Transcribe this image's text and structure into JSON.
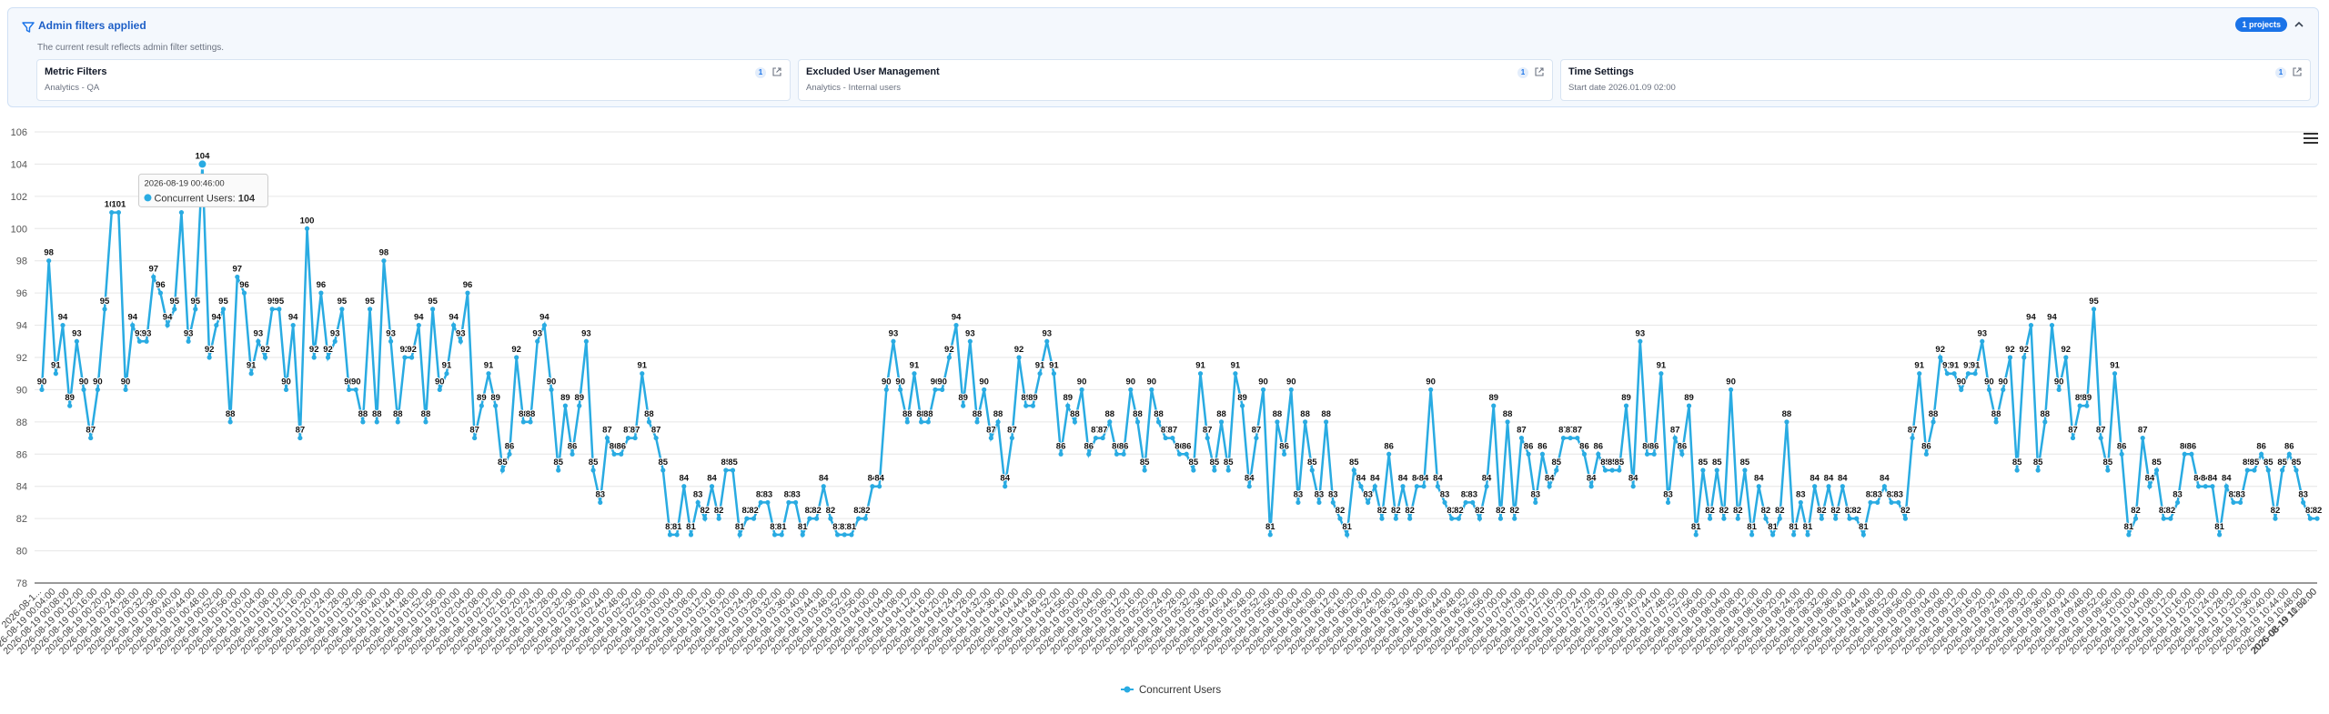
{
  "filter_panel": {
    "title": "Admin filters applied",
    "subtitle": "The current result reflects admin filter settings.",
    "badge": "1 projects",
    "cards": [
      {
        "title": "Metric Filters",
        "subtitle": "Analytics - QA",
        "count": "1"
      },
      {
        "title": "Excluded User Management",
        "subtitle": "Analytics - Internal users",
        "count": "1"
      },
      {
        "title": "Time Settings",
        "subtitle": "Start date 2026.01.09 02:00",
        "count": "1"
      }
    ]
  },
  "colors": {
    "series": "#29abe2",
    "accent": "#1a73e8"
  },
  "menu_icon": "hamburger-menu-icon",
  "chart_data": {
    "type": "line",
    "title": "",
    "xlabel": "",
    "ylabel": "",
    "ylim": [
      78,
      106
    ],
    "y_ticks": [
      78,
      80,
      82,
      84,
      86,
      88,
      90,
      92,
      94,
      96,
      98,
      100,
      102,
      104,
      106
    ],
    "grid": true,
    "legend": "bottom-center",
    "x_start_label": "2026-08-19 00:00:00",
    "x_first_tick_label": "2026-08-1...",
    "x_last_tick_label": "2026-08-19 11:00:00",
    "x_label_format": "2026-08-19 HH:MM:00",
    "x_interval_minutes": 2,
    "tooltip": {
      "date": "2026-08-19 00:46:00",
      "series": "Concurrent Users",
      "value": "104"
    },
    "series": [
      {
        "name": "Concurrent Users",
        "values": [
          90,
          98,
          91,
          94,
          89,
          93,
          90,
          87,
          90,
          95,
          101,
          101,
          90,
          94,
          93,
          93,
          97,
          96,
          94,
          95,
          101,
          93,
          95,
          104,
          92,
          94,
          95,
          88,
          97,
          96,
          91,
          93,
          92,
          95,
          95,
          90,
          94,
          87,
          100,
          92,
          96,
          92,
          93,
          95,
          90,
          90,
          88,
          95,
          88,
          98,
          93,
          88,
          92,
          92,
          94,
          88,
          95,
          90,
          91,
          94,
          93,
          96,
          87,
          89,
          91,
          89,
          85,
          86,
          92,
          88,
          88,
          93,
          94,
          90,
          85,
          89,
          86,
          89,
          93,
          85,
          83,
          87,
          86,
          86,
          87,
          87,
          91,
          88,
          87,
          85,
          81,
          81,
          84,
          81,
          83,
          82,
          84,
          82,
          85,
          85,
          81,
          82,
          82,
          83,
          83,
          81,
          81,
          83,
          83,
          81,
          82,
          82,
          84,
          82,
          81,
          81,
          81,
          82,
          82,
          84,
          84,
          90,
          93,
          90,
          88,
          91,
          88,
          88,
          90,
          90,
          92,
          94,
          89,
          93,
          88,
          90,
          87,
          88,
          84,
          87,
          92,
          89,
          89,
          91,
          93,
          91,
          86,
          89,
          88,
          90,
          86,
          87,
          87,
          88,
          86,
          86,
          90,
          88,
          85,
          90,
          88,
          87,
          87,
          86,
          86,
          85,
          91,
          87,
          85,
          88,
          85,
          91,
          89,
          84,
          87,
          90,
          81,
          88,
          86,
          90,
          83,
          88,
          85,
          83,
          88,
          83,
          82,
          81,
          85,
          84,
          83,
          84,
          82,
          86,
          82,
          84,
          82,
          84,
          84,
          90,
          84,
          83,
          82,
          82,
          83,
          83,
          82,
          84,
          89,
          82,
          88,
          82,
          87,
          86,
          83,
          86,
          84,
          85,
          87,
          87,
          87,
          86,
          84,
          86,
          85,
          85,
          85,
          89,
          84,
          93,
          86,
          86,
          91,
          83,
          87,
          86,
          89,
          81,
          85,
          82,
          85,
          82,
          90,
          82,
          85,
          81,
          84,
          82,
          81,
          82,
          88,
          81,
          83,
          81,
          84,
          82,
          84,
          82,
          84,
          82,
          82,
          81,
          83,
          83,
          84,
          83,
          83,
          82,
          87,
          91,
          86,
          88,
          92,
          91,
          91,
          90,
          91,
          91,
          93,
          90,
          88,
          90,
          92,
          85,
          92,
          94,
          85,
          88,
          94,
          90,
          92,
          87,
          89,
          89,
          95,
          87,
          85,
          91,
          86,
          81,
          82,
          87,
          84,
          85,
          82,
          82,
          83,
          86,
          86,
          84,
          84,
          84,
          81,
          84,
          83,
          83,
          85,
          85,
          86,
          85,
          82,
          85,
          86,
          85,
          83,
          82,
          82
        ]
      }
    ]
  }
}
